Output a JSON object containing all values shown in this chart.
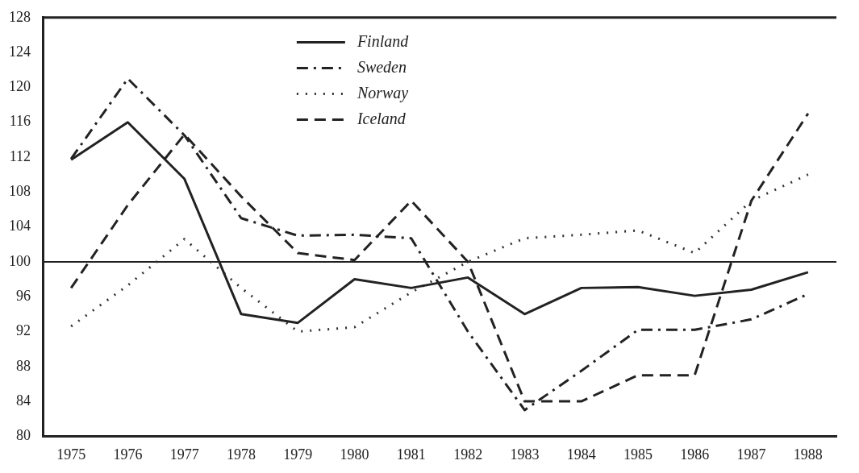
{
  "chart_data": {
    "type": "line",
    "categories": [
      "1975",
      "1976",
      "1977",
      "1978",
      "1979",
      "1980",
      "1981",
      "1982",
      "1983",
      "1984",
      "1985",
      "1986",
      "1987",
      "1988"
    ],
    "series": [
      {
        "name": "Finland",
        "color": "#222222",
        "line_style": "solid",
        "values": [
          111.7,
          116,
          109.5,
          94,
          93,
          98,
          97,
          98.2,
          94,
          97,
          97.1,
          96.1,
          96.8,
          98.8
        ]
      },
      {
        "name": "Sweden",
        "color": "#222222",
        "line_style": "dashdot",
        "values": [
          111.8,
          121,
          114.5,
          105,
          103,
          103.1,
          102.7,
          92,
          83,
          87.5,
          92.2,
          92.2,
          93.4,
          96.3
        ]
      },
      {
        "name": "Norway",
        "color": "#333333",
        "line_style": "dotted",
        "values": [
          92.6,
          97.3,
          102.6,
          97,
          92,
          92.5,
          96.5,
          100,
          102.7,
          103.1,
          103.6,
          101,
          107,
          110
        ]
      },
      {
        "name": "Iceland",
        "color": "#222222",
        "line_style": "dashed",
        "values": [
          97,
          106.5,
          114.6,
          107.5,
          101,
          100.2,
          107,
          100,
          84,
          84,
          87,
          87,
          107,
          117
        ]
      }
    ],
    "ylim": [
      80,
      128
    ],
    "yticks": [
      80,
      84,
      88,
      92,
      96,
      100,
      104,
      108,
      112,
      116,
      120,
      124,
      128
    ],
    "ref_lines": [
      {
        "axis": "y",
        "value": 100,
        "color": "#222222"
      }
    ],
    "grid": false,
    "legend": "top",
    "marker": "none"
  }
}
